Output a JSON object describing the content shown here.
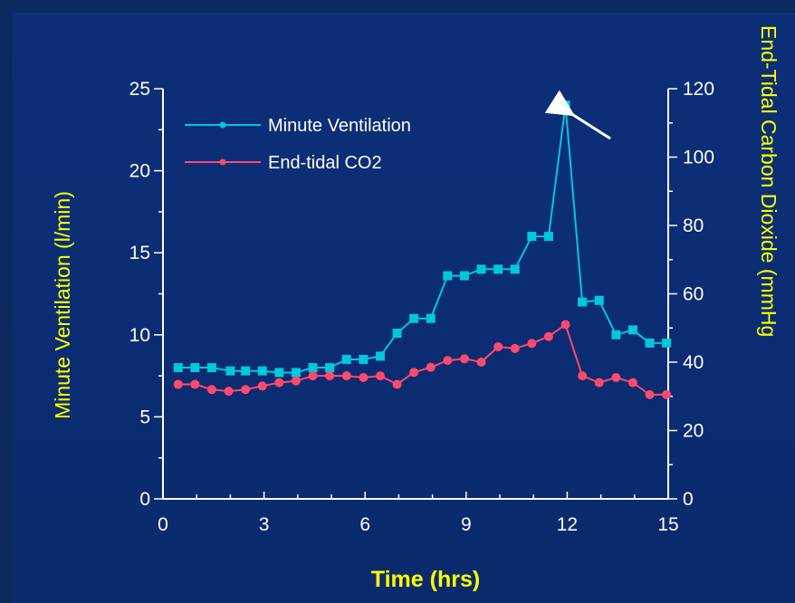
{
  "chart_data": {
    "type": "line",
    "xlabel": "Time (hrs)",
    "ylabel": "Minute Ventilation (l/min)",
    "y2label": "End-Tidal Carbon Dioxide (mmHg",
    "xlim": [
      0,
      15
    ],
    "ylim": [
      0,
      25
    ],
    "y2lim": [
      0,
      120
    ],
    "xticks": [
      "0",
      "3",
      "6",
      "9",
      "12",
      "15"
    ],
    "yticks": [
      "0",
      "5",
      "10",
      "15",
      "20",
      "25"
    ],
    "y2ticks": [
      "0",
      "20",
      "40",
      "60",
      "80",
      "100",
      "120"
    ],
    "legend_position": "top-left",
    "grid": false,
    "annotation": "arrow pointing to peak minute ventilation",
    "colors": {
      "ventilation": "#00c8dc",
      "co2": "#ff4a6e",
      "axes": "#ffffff",
      "titles": "#ffff00",
      "background": "#0b2d74"
    },
    "series": [
      {
        "name": "Minute Ventilation",
        "axis": "left",
        "marker": "square",
        "x": [
          0.45,
          0.95,
          1.45,
          2.0,
          2.45,
          2.95,
          3.45,
          3.95,
          4.45,
          4.95,
          5.45,
          5.95,
          6.45,
          6.95,
          7.45,
          7.95,
          8.45,
          8.95,
          9.45,
          9.95,
          10.45,
          10.95,
          11.45,
          11.95,
          12.45,
          12.95,
          13.45,
          13.95,
          14.45,
          14.95
        ],
        "y": [
          8.0,
          8.0,
          8.0,
          7.8,
          7.8,
          7.8,
          7.7,
          7.7,
          8.0,
          8.0,
          8.5,
          8.5,
          8.7,
          10.1,
          11.0,
          11.0,
          13.6,
          13.6,
          14.0,
          14.0,
          14.0,
          16.0,
          16.0,
          24.0,
          12.0,
          12.1,
          10.0,
          10.3,
          9.5,
          9.5
        ]
      },
      {
        "name": "End-tidal CO2",
        "axis": "right",
        "marker": "circle",
        "x": [
          0.45,
          0.95,
          1.45,
          1.95,
          2.45,
          2.95,
          3.45,
          3.95,
          4.45,
          4.95,
          5.45,
          5.95,
          6.45,
          6.95,
          7.45,
          7.95,
          8.45,
          8.95,
          9.45,
          9.95,
          10.45,
          10.95,
          11.45,
          11.95,
          12.45,
          12.95,
          13.45,
          13.95,
          14.45,
          14.95
        ],
        "y": [
          33.5,
          33.5,
          32.0,
          31.5,
          32.0,
          33.0,
          34.0,
          34.5,
          36.0,
          36.0,
          36.0,
          35.5,
          36.0,
          33.5,
          37.0,
          38.5,
          40.5,
          41.0,
          40.0,
          44.5,
          44.0,
          45.5,
          47.5,
          51.0,
          36.0,
          34.0,
          35.5,
          34.0,
          30.5,
          30.5
        ]
      }
    ]
  }
}
